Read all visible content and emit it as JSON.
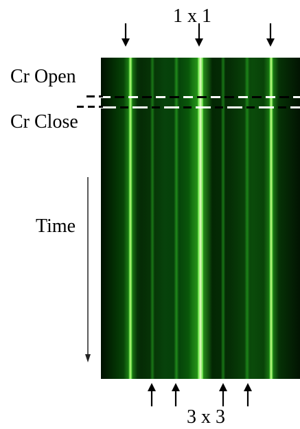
{
  "labels": {
    "top": "1 x 1",
    "bottom": "3 x 3",
    "open": "Cr Open",
    "close": "Cr Close",
    "time": "Time"
  },
  "colors": {
    "stripe_bright": "#78ff3b",
    "stripe_mid": "#33c21d",
    "stripe_dim": "#176c12",
    "pattern_dark": "#001000",
    "dash_white": "#ffffff",
    "dash_black": "#000000"
  },
  "icons": {
    "top_arrows": "arrow-down-icon",
    "bottom_arrows": "arrow-up-icon",
    "time_axis": "long-arrow-down-icon"
  }
}
